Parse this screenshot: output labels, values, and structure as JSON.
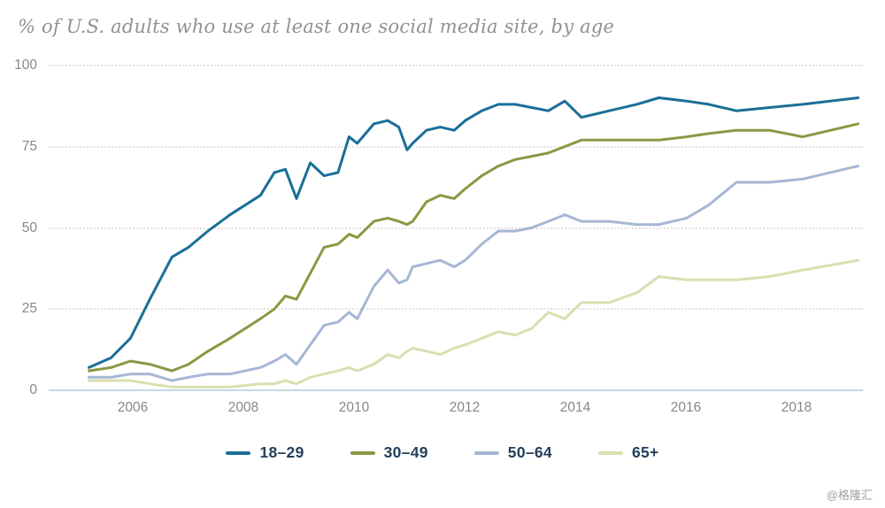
{
  "title": "% of U.S. adults who use at least one social media site, by age",
  "watermark": "@格隆汇",
  "chart_data": {
    "type": "line",
    "title": "% of U.S. adults who use at least one social media site, by age",
    "xlabel": "",
    "ylabel": "",
    "x_range": [
      2005,
      2019.3
    ],
    "ylim": [
      0,
      100
    ],
    "y_ticks": [
      "100",
      "75",
      "50",
      "25",
      "0"
    ],
    "x_ticks": [
      "2006",
      "2008",
      "2010",
      "2012",
      "2014",
      "2016",
      "2018"
    ],
    "grid": "horizontal-dotted",
    "legend_position": "bottom-center",
    "x": [
      2005.2,
      2005.6,
      2005.95,
      2006.3,
      2006.7,
      2007.0,
      2007.35,
      2007.75,
      2008.3,
      2008.55,
      2008.75,
      2008.95,
      2009.2,
      2009.45,
      2009.7,
      2009.9,
      2010.05,
      2010.35,
      2010.6,
      2010.8,
      2010.95,
      2011.05,
      2011.3,
      2011.55,
      2011.8,
      2012.0,
      2012.3,
      2012.6,
      2012.9,
      2013.2,
      2013.5,
      2013.8,
      2014.1,
      2014.6,
      2015.1,
      2015.5,
      2016.0,
      2016.4,
      2016.9,
      2017.5,
      2018.1,
      2019.1
    ],
    "series": [
      {
        "name": "18–29",
        "color": "#1a6f97",
        "values": [
          7,
          10,
          16,
          28,
          41,
          44,
          49,
          54,
          60,
          67,
          68,
          59,
          70,
          66,
          67,
          78,
          76,
          82,
          83,
          81,
          74,
          76,
          80,
          81,
          80,
          83,
          86,
          88,
          88,
          87,
          86,
          89,
          84,
          86,
          88,
          90,
          89,
          88,
          86,
          87,
          88,
          90
        ]
      },
      {
        "name": "30–49",
        "color": "#8b9843",
        "values": [
          6,
          7,
          9,
          8,
          6,
          8,
          12,
          16,
          22,
          25,
          29,
          28,
          36,
          44,
          45,
          48,
          47,
          52,
          53,
          52,
          51,
          52,
          58,
          60,
          59,
          62,
          66,
          69,
          71,
          72,
          73,
          75,
          77,
          77,
          77,
          77,
          78,
          79,
          80,
          80,
          78,
          82
        ]
      },
      {
        "name": "50–64",
        "color": "#a6b7d4",
        "values": [
          4,
          4,
          5,
          5,
          3,
          4,
          5,
          5,
          7,
          9,
          11,
          8,
          14,
          20,
          21,
          24,
          22,
          32,
          37,
          33,
          34,
          38,
          39,
          40,
          38,
          40,
          45,
          49,
          49,
          50,
          52,
          54,
          52,
          52,
          51,
          51,
          53,
          57,
          64,
          64,
          65,
          69
        ]
      },
      {
        "name": "65+",
        "color": "#d9dfb0",
        "values": [
          3,
          3,
          3,
          2,
          1,
          1,
          1,
          1,
          2,
          2,
          3,
          2,
          4,
          5,
          6,
          7,
          6,
          8,
          11,
          10,
          12,
          13,
          12,
          11,
          13,
          14,
          16,
          18,
          17,
          19,
          24,
          22,
          27,
          27,
          30,
          35,
          34,
          34,
          34,
          35,
          37,
          40
        ]
      }
    ]
  }
}
